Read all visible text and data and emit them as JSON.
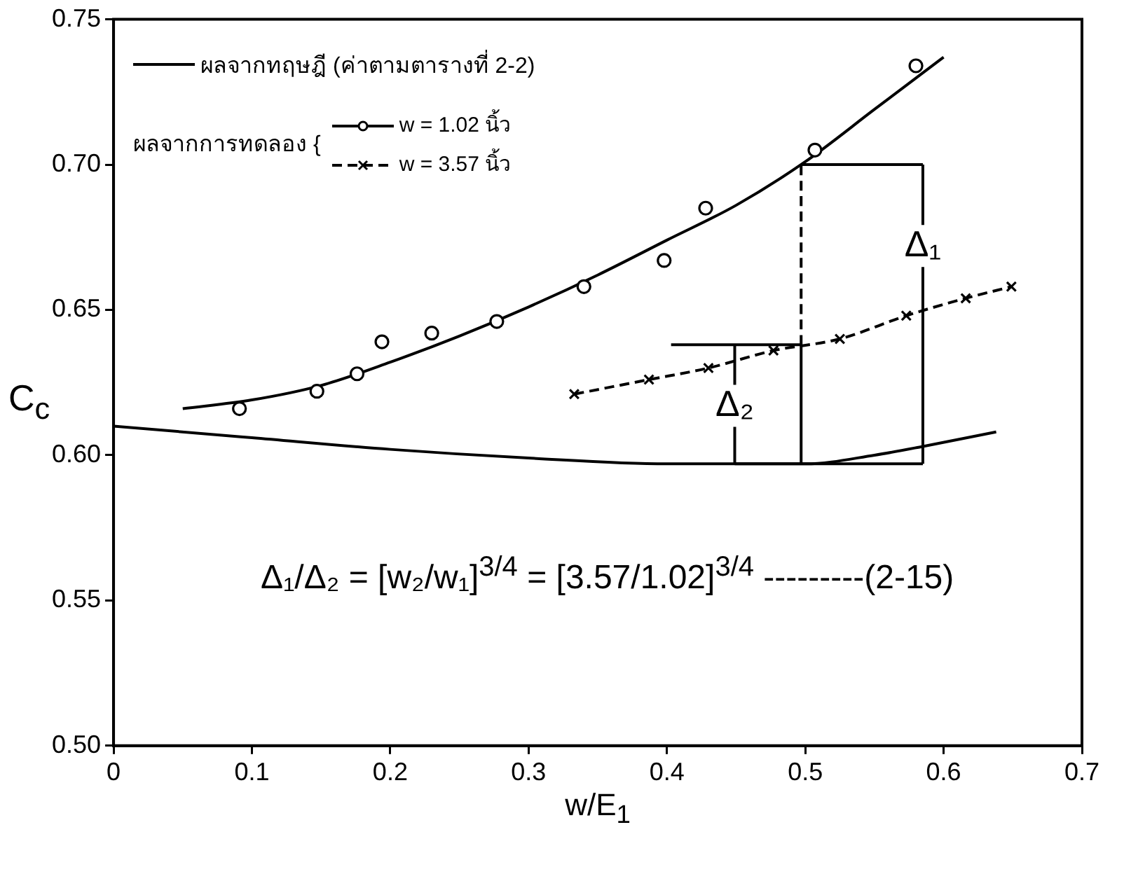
{
  "chart_data": {
    "type": "line",
    "xlabel": "w/E$_{1}$",
    "ylabel": "C$_{c}$",
    "legend_title": "ผลจากการทดลอง {",
    "xlim": [
      0,
      0.7
    ],
    "xticks": [
      0,
      0.1,
      0.2,
      0.3,
      0.4,
      0.5,
      0.6,
      0.7
    ],
    "ylim": [
      0.5,
      0.75
    ],
    "yticks": [
      {
        "value": 0.5,
        "label": "0.50"
      },
      0.55,
      {
        "value": 0.6,
        "label": "0.60"
      },
      0.65,
      {
        "value": 0.7,
        "label": "0.70"
      },
      0.75
    ],
    "grid": false,
    "legend": "top left",
    "marker": "none",
    "line_style": "solid",
    "annotations": [
      "Δ₁/Δ₂ = [w₂/w₁]$^{3/4}$ = [3.57/1.02]$^{3/4}$ ---------(2-15)",
      {
        "text": "Δ₁",
        "x": 0.585,
        "y": 0.672
      },
      {
        "text": "Δ₂",
        "x": 0.449,
        "y": 0.617
      }
    ],
    "series": [
      {
        "name": "ผลจากทฤษฎี (ค่าตามตารางที่ 2-2)",
        "color": "#000000",
        "x": [
          0,
          0.1,
          0.2,
          0.3,
          0.4,
          0.5,
          0.55,
          0.585,
          0.638
        ],
        "values": [
          0.61,
          0.606,
          0.602,
          0.599,
          0.597,
          0.597,
          0.6,
          0.603,
          0.608
        ]
      },
      {
        "name": "w = 1.02 นิ้ว",
        "type": "scatter",
        "marker": "circle",
        "color": "#000000",
        "x": [
          0.091,
          0.147,
          0.176,
          0.194,
          0.23,
          0.277,
          0.34,
          0.398,
          0.428,
          0.507,
          0.58
        ],
        "values": [
          0.616,
          0.622,
          0.628,
          0.639,
          0.642,
          0.646,
          0.658,
          0.667,
          0.685,
          0.705,
          0.734
        ]
      },
      {
        "color": "#000000",
        "x": [
          0.05,
          0.1,
          0.15,
          0.2,
          0.25,
          0.3,
          0.35,
          0.4,
          0.45,
          0.5,
          0.55,
          0.6
        ],
        "values": [
          0.616,
          0.619,
          0.624,
          0.632,
          0.641,
          0.651,
          0.662,
          0.674,
          0.686,
          0.701,
          0.719,
          0.737
        ]
      },
      {
        "name": "w = 3.57 นิ้ว",
        "marker": "cross",
        "line_style": "dashed",
        "color": "#000000",
        "x": [
          0.333,
          0.387,
          0.43,
          0.477,
          0.525,
          0.573,
          0.616,
          0.649
        ],
        "values": [
          0.621,
          0.626,
          0.63,
          0.636,
          0.64,
          0.648,
          0.654,
          0.658
        ]
      },
      {
        "color": "#000000",
        "line_style": "dashed",
        "x": [
          0.497,
          0.497
        ],
        "values": [
          0.638,
          0.7
        ]
      },
      {
        "color": "#000000",
        "x": [
          0.497,
          0.497
        ],
        "values": [
          0.597,
          0.638
        ]
      },
      {
        "color": "#000000",
        "x": [
          0.497,
          0.585
        ],
        "values": [
          0.7,
          0.7
        ]
      },
      {
        "color": "#000000",
        "x": [
          0.585,
          0.585
        ],
        "values": [
          0.597,
          0.7
        ]
      },
      {
        "color": "#000000",
        "x": [
          0.403,
          0.497
        ],
        "values": [
          0.638,
          0.638
        ]
      },
      {
        "color": "#000000",
        "x": [
          0.449,
          0.449
        ],
        "values": [
          0.597,
          0.638
        ]
      },
      {
        "color": "#000000",
        "x": [
          0.449,
          0.585
        ],
        "values": [
          0.597,
          0.597
        ]
      }
    ]
  }
}
